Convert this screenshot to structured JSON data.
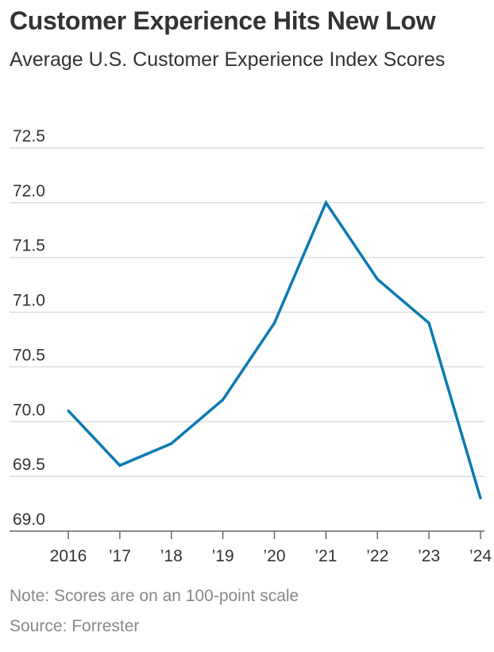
{
  "title": "Customer Experience Hits New Low",
  "subtitle": "Average U.S. Customer Experience Index Scores",
  "note": "Note: Scores are on an 100-point scale",
  "source": "Source: Forrester",
  "colors": {
    "line": "#0a7ab3",
    "grid": "#dddddd",
    "axis": "#666666",
    "text": "#333333"
  },
  "chart_data": {
    "type": "line",
    "categories": [
      "2016",
      "’17",
      "’18",
      "’19",
      "’20",
      "’21",
      "’22",
      "’23",
      "’24"
    ],
    "series": [
      {
        "values": [
          70.1,
          69.6,
          69.8,
          70.2,
          70.9,
          72.0,
          71.3,
          70.9,
          69.3
        ]
      }
    ],
    "yticks": [
      "72.5",
      "72.0",
      "71.5",
      "71.0",
      "70.5",
      "70.0",
      "69.5",
      "69.0"
    ],
    "ylim": [
      69.0,
      72.5
    ],
    "grid": true,
    "xlabel": "",
    "ylabel": ""
  }
}
